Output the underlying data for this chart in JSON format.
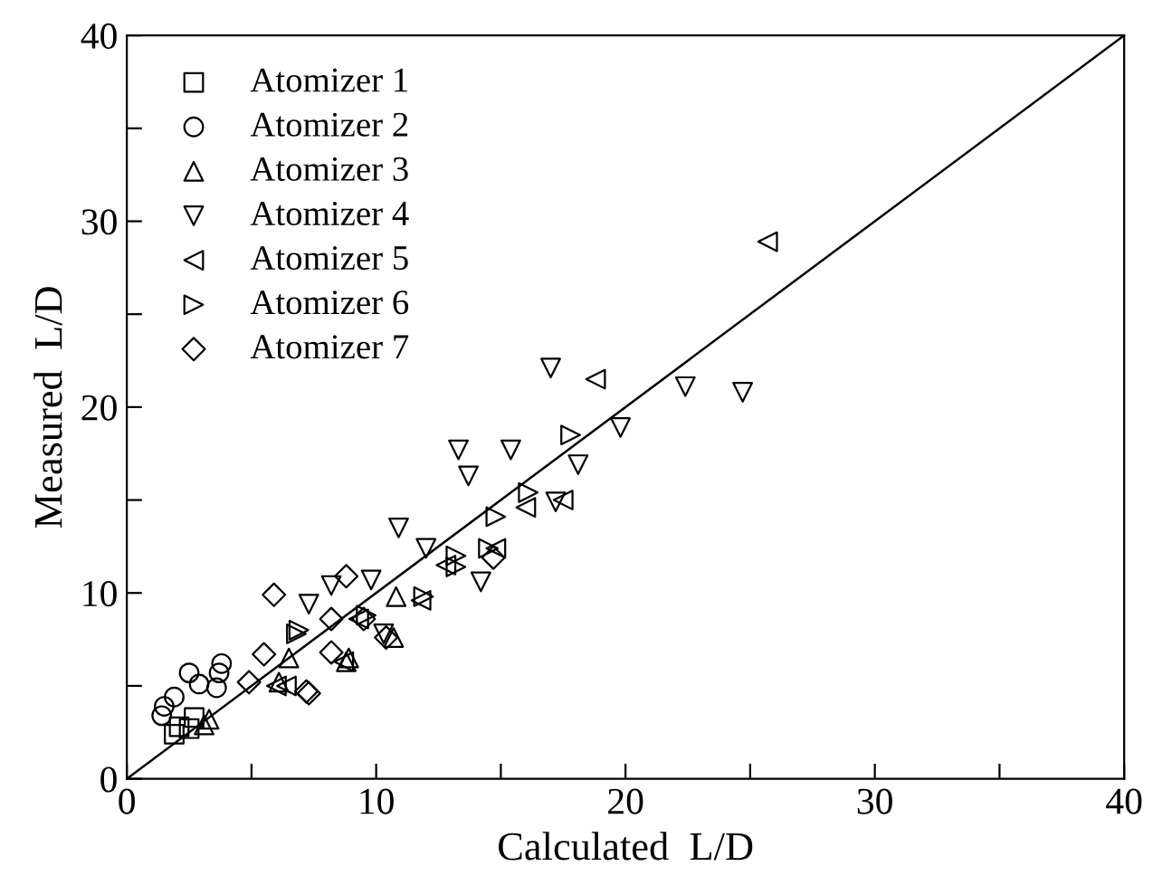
{
  "chart_data": {
    "type": "scatter",
    "xlabel": "Calculated  L/D",
    "ylabel": "Measured  L/D",
    "xlim": [
      0,
      40
    ],
    "ylim": [
      0,
      40
    ],
    "xticks": [
      0,
      {
        "value": 5,
        "label": null
      },
      10,
      {
        "value": 15,
        "label": null
      },
      20,
      {
        "value": 25,
        "label": null
      },
      30,
      {
        "value": 35,
        "label": null
      },
      40
    ],
    "yticks": [
      0,
      {
        "value": 5,
        "label": null
      },
      10,
      {
        "value": 15,
        "label": null
      },
      20,
      {
        "value": 25,
        "label": null
      },
      30,
      {
        "value": 35,
        "label": null
      },
      40
    ],
    "grid": false,
    "legend": "top left",
    "series": [
      {
        "name": "Atomizer 1",
        "color": "#000000",
        "marker": "square",
        "x": [
          2.1,
          2.7,
          1.9,
          2.5
        ],
        "values": [
          2.8,
          3.3,
          2.4,
          2.7
        ]
      },
      {
        "name": "Atomizer 2",
        "color": "#000000",
        "marker": "circle",
        "x": [
          1.5,
          1.4,
          1.9,
          2.5,
          2.9,
          3.6,
          3.8,
          3.7
        ],
        "values": [
          3.9,
          3.4,
          4.4,
          5.7,
          5.1,
          4.9,
          6.2,
          5.7
        ]
      },
      {
        "name": "Atomizer 3",
        "color": "#000000",
        "marker": "triangle",
        "x": [
          3.3,
          3.1,
          6.5,
          6.1,
          8.9,
          10.8,
          8.8,
          10.7
        ],
        "values": [
          3.2,
          2.9,
          6.5,
          5.2,
          6.5,
          9.8,
          6.3,
          7.6
        ]
      },
      {
        "name": "Atomizer 4",
        "color": "#000000",
        "marker": "triangle_down",
        "x": [
          7.3,
          8.2,
          10.9,
          12.0,
          9.8,
          14.2,
          10.3,
          13.3,
          15.4,
          13.7,
          18.1,
          17.0,
          22.4,
          24.7,
          19.8,
          17.2
        ],
        "values": [
          9.4,
          10.4,
          13.5,
          12.4,
          10.7,
          10.6,
          7.8,
          17.7,
          17.7,
          16.3,
          16.9,
          22.1,
          21.1,
          20.8,
          18.9,
          14.9
        ]
      },
      {
        "name": "Atomizer 5",
        "color": "#000000",
        "marker": "triangle_left",
        "x": [
          25.7,
          18.8,
          17.5,
          16.0,
          12.8,
          14.8,
          9.3,
          11.8,
          8.7,
          6.4,
          6.0
        ],
        "values": [
          28.9,
          21.5,
          15.0,
          14.6,
          11.5,
          12.4,
          8.6,
          9.6,
          6.3,
          5.0,
          5.0
        ]
      },
      {
        "name": "Atomizer 6",
        "color": "#000000",
        "marker": "triangle_right",
        "x": [
          17.8,
          16.1,
          14.8,
          14.5,
          13.2,
          13.2,
          11.9,
          9.6,
          6.8,
          6.9
        ],
        "values": [
          18.5,
          15.4,
          14.1,
          12.4,
          12.0,
          11.4,
          9.8,
          8.8,
          7.8,
          8.0
        ]
      },
      {
        "name": "Atomizer 7",
        "color": "#000000",
        "marker": "diamond",
        "x": [
          5.9,
          8.8,
          8.2,
          5.5,
          4.9,
          8.2,
          7.2,
          10.4,
          7.3,
          9.5,
          14.7
        ],
        "values": [
          9.9,
          10.9,
          8.6,
          6.7,
          5.2,
          6.8,
          4.7,
          7.6,
          4.6,
          8.6,
          11.9
        ]
      },
      {
        "type": "line",
        "color": "#000000",
        "line_style": "solid",
        "marker": "none",
        "x": [
          0,
          40
        ],
        "values": [
          0,
          40
        ]
      }
    ]
  }
}
